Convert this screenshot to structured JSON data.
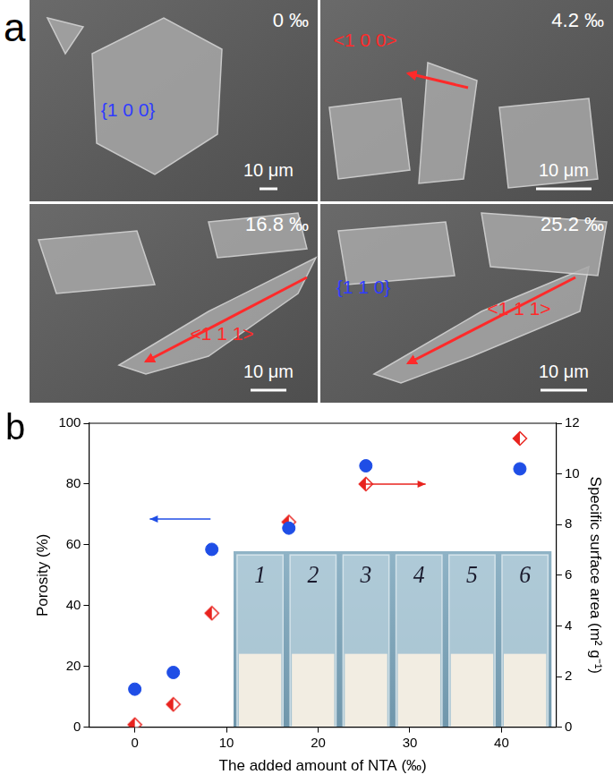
{
  "panels": {
    "label": "a",
    "tiles": [
      {
        "concentration": "0 ‰",
        "scale_bar": "10 μm",
        "annotations": [
          {
            "text": "{1 0 0}",
            "type": "facet",
            "color": "#2f3cff"
          }
        ]
      },
      {
        "concentration": "4.2 ‰",
        "scale_bar": "10 μm",
        "annotations": [
          {
            "text": "<1 0 0>",
            "type": "direction",
            "color": "#ff2a2a"
          }
        ]
      },
      {
        "concentration": "16.8 ‰",
        "scale_bar": "10 μm",
        "annotations": [
          {
            "text": "<1 1 1>",
            "type": "direction",
            "color": "#ff2a2a"
          }
        ]
      },
      {
        "concentration": "25.2 ‰",
        "scale_bar": "10 μm",
        "annotations": [
          {
            "text": "{1 1 0}",
            "type": "facet",
            "color": "#2f3cff"
          },
          {
            "text": "<1 1 1>",
            "type": "direction",
            "color": "#ff2a2a"
          }
        ]
      }
    ]
  },
  "chart_data": {
    "type": "scatter",
    "panel_label": "b",
    "x_label": "The added amount of NTA (‰)",
    "y_label": "Porosity (%)",
    "y2_label": "Specific surface area (m² g⁻¹)",
    "x": [
      0,
      4.2,
      8.4,
      16.8,
      25.2,
      42
    ],
    "series": [
      {
        "values": [
          12.5,
          18,
          58.5,
          65.5,
          86,
          85
        ],
        "color": "#1f4ee6",
        "marker": "circle"
      },
      {
        "values": [
          0.1,
          0.9,
          4.5,
          8.1,
          9.6,
          11.4
        ],
        "color": "#e8231e",
        "marker": "diamond",
        "axis": "y2"
      }
    ],
    "xlim": [
      -5,
      46
    ],
    "xticks": [
      0,
      10,
      20,
      30,
      40
    ],
    "ylim": [
      0,
      100
    ],
    "yticks": [
      0,
      20,
      40,
      60,
      80,
      100
    ],
    "y2lim": [
      0,
      12
    ],
    "y2ticks": [
      0,
      2,
      4,
      6,
      8,
      10,
      12
    ],
    "grid": false,
    "inset_labels": [
      "1",
      "2",
      "3",
      "4",
      "5",
      "6"
    ]
  }
}
